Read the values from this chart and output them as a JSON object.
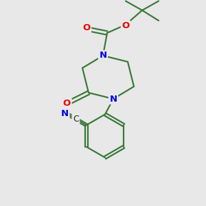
{
  "background_color": "#e8e8e8",
  "bond_color": "#3a7a3a",
  "N_color": "#0000ee",
  "O_color": "#ee0000",
  "figsize": [
    3.0,
    3.0
  ],
  "dpi": 100,
  "xlim": [
    0,
    10
  ],
  "ylim": [
    0,
    10
  ]
}
